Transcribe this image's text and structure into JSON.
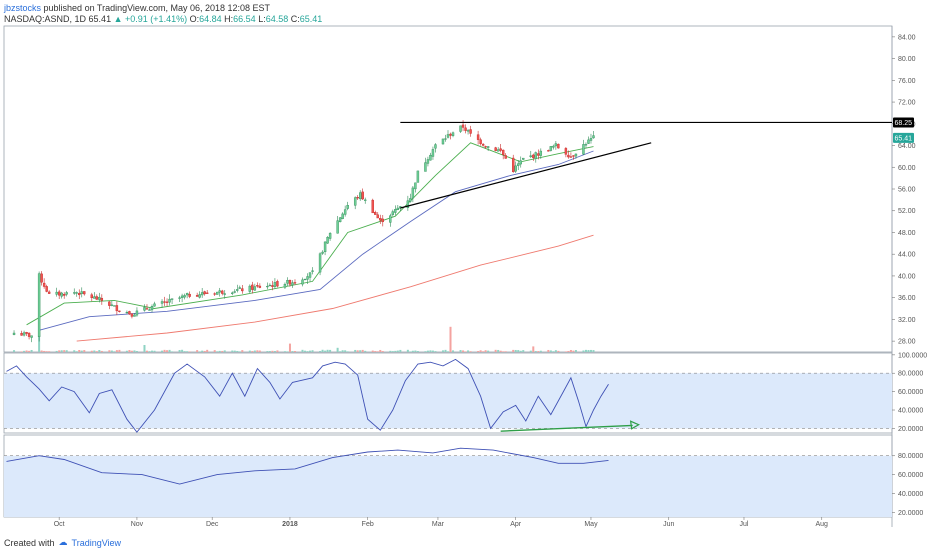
{
  "header": {
    "username": "jbzstocks",
    "published_text": "published on TradingView.com, May 06, 2018 12:08 EST",
    "symbol": "NASDAQ:ASND, 1D",
    "last": "65.41",
    "change": "+0.91 (+1.41%)",
    "open_label": "O:",
    "open": "64.84",
    "high_label": "H:",
    "high": "66.54",
    "low_label": "L:",
    "low": "64.58",
    "close_label": "C:",
    "close": "65.41"
  },
  "footer": {
    "created_with": "Created with",
    "brand": "TradingView"
  },
  "colors": {
    "up": "#26a69a",
    "down": "#ef5350",
    "up_fill": "#2e8b57",
    "ma_fast": "#4caf50",
    "ma_mid": "#5c6bc0",
    "ma_slow": "#ef7a6f",
    "osc_line": "#3f51b5",
    "osc_fill": "#dce9fb",
    "trend": "#000000",
    "divergence": "#2e9e48"
  },
  "chart_data": [
    {
      "type": "candlestick",
      "symbol": "NASDAQ:ASND",
      "interval": "1D",
      "ylim": [
        26,
        86
      ],
      "y_ticks": [
        "84.00",
        "80.00",
        "76.00",
        "72.00",
        "68.00",
        "64.00",
        "60.00",
        "56.00",
        "52.00",
        "48.00",
        "44.00",
        "40.00",
        "36.00",
        "32.00",
        "28.00"
      ],
      "x_ticks": [
        "Oct",
        "Nov",
        "Dec",
        "2018",
        "Feb",
        "Mar",
        "Apr",
        "May",
        "Jun",
        "Jul",
        "Aug"
      ],
      "price_labels": [
        {
          "value": "68.25"
        },
        {
          "value": "65.41"
        }
      ],
      "anchors": [
        {
          "date": "2017-09-15",
          "price": 29.5
        },
        {
          "date": "2017-09-22",
          "price": 29.0
        },
        {
          "date": "2017-09-25",
          "price": 40.0
        },
        {
          "date": "2017-09-29",
          "price": 36.5
        },
        {
          "date": "2017-10-10",
          "price": 37.0
        },
        {
          "date": "2017-10-20",
          "price": 35.5
        },
        {
          "date": "2017-10-26",
          "price": 34.0
        },
        {
          "date": "2017-11-01",
          "price": 33.0
        },
        {
          "date": "2017-11-10",
          "price": 34.5
        },
        {
          "date": "2017-11-24",
          "price": 36.5
        },
        {
          "date": "2017-12-15",
          "price": 37.5
        },
        {
          "date": "2017-12-29",
          "price": 38.5
        },
        {
          "date": "2018-01-05",
          "price": 39.0
        },
        {
          "date": "2018-01-12",
          "price": 40.5
        },
        {
          "date": "2018-01-19",
          "price": 48.0
        },
        {
          "date": "2018-01-26",
          "price": 53.0
        },
        {
          "date": "2018-01-31",
          "price": 55.0
        },
        {
          "date": "2018-02-05",
          "price": 52.0
        },
        {
          "date": "2018-02-08",
          "price": 50.0
        },
        {
          "date": "2018-02-14",
          "price": 52.0
        },
        {
          "date": "2018-02-20",
          "price": 54.5
        },
        {
          "date": "2018-02-23",
          "price": 59.0
        },
        {
          "date": "2018-03-02",
          "price": 64.0
        },
        {
          "date": "2018-03-09",
          "price": 66.5
        },
        {
          "date": "2018-03-13",
          "price": 67.5
        },
        {
          "date": "2018-03-16",
          "price": 66.0
        },
        {
          "date": "2018-03-22",
          "price": 64.0
        },
        {
          "date": "2018-03-28",
          "price": 63.0
        },
        {
          "date": "2018-04-02",
          "price": 59.5
        },
        {
          "date": "2018-04-06",
          "price": 61.5
        },
        {
          "date": "2018-04-12",
          "price": 62.5
        },
        {
          "date": "2018-04-19",
          "price": 64.0
        },
        {
          "date": "2018-04-25",
          "price": 62.0
        },
        {
          "date": "2018-05-01",
          "price": 64.5
        },
        {
          "date": "2018-05-04",
          "price": 65.41
        }
      ],
      "moving_averages": [
        {
          "anchors": [
            {
              "date": "2017-09-20",
              "price": 31.0
            },
            {
              "date": "2017-10-05",
              "price": 35.0
            },
            {
              "date": "2017-10-25",
              "price": 35.5
            },
            {
              "date": "2017-11-10",
              "price": 34.0
            },
            {
              "date": "2017-12-15",
              "price": 36.5
            },
            {
              "date": "2018-01-12",
              "price": 39.0
            },
            {
              "date": "2018-01-26",
              "price": 48.0
            },
            {
              "date": "2018-02-14",
              "price": 51.0
            },
            {
              "date": "2018-03-02",
              "price": 58.5
            },
            {
              "date": "2018-03-16",
              "price": 64.5
            },
            {
              "date": "2018-04-05",
              "price": 61.0
            },
            {
              "date": "2018-04-20",
              "price": 62.5
            },
            {
              "date": "2018-05-04",
              "price": 63.8
            }
          ]
        },
        {
          "anchors": [
            {
              "date": "2017-09-25",
              "price": 30.0
            },
            {
              "date": "2017-10-15",
              "price": 32.5
            },
            {
              "date": "2017-11-15",
              "price": 33.5
            },
            {
              "date": "2017-12-20",
              "price": 35.5
            },
            {
              "date": "2018-01-15",
              "price": 37.5
            },
            {
              "date": "2018-02-01",
              "price": 44.0
            },
            {
              "date": "2018-02-20",
              "price": 50.0
            },
            {
              "date": "2018-03-10",
              "price": 55.5
            },
            {
              "date": "2018-04-01",
              "price": 58.5
            },
            {
              "date": "2018-04-20",
              "price": 60.5
            },
            {
              "date": "2018-05-04",
              "price": 63.0
            }
          ]
        },
        {
          "anchors": [
            {
              "date": "2017-10-10",
              "price": 28.0
            },
            {
              "date": "2017-11-15",
              "price": 29.5
            },
            {
              "date": "2017-12-20",
              "price": 31.5
            },
            {
              "date": "2018-01-20",
              "price": 34.0
            },
            {
              "date": "2018-02-20",
              "price": 38.0
            },
            {
              "date": "2018-03-20",
              "price": 42.0
            },
            {
              "date": "2018-04-20",
              "price": 45.5
            },
            {
              "date": "2018-05-04",
              "price": 47.5
            }
          ]
        }
      ],
      "trendlines": [
        {
          "from": {
            "date": "2018-02-16",
            "price": 68.25
          },
          "to": {
            "date": "2018-08-31",
            "price": 68.25
          }
        },
        {
          "from": {
            "date": "2018-02-16",
            "price": 52.5
          },
          "to": {
            "date": "2018-05-27",
            "price": 64.5
          }
        }
      ],
      "volume": {
        "spikes": [
          {
            "date": "2017-09-25",
            "volume": 12
          },
          {
            "date": "2017-11-06",
            "volume": 5
          },
          {
            "date": "2018-01-03",
            "volume": 6
          },
          {
            "date": "2018-01-22",
            "volume": 3
          },
          {
            "date": "2018-03-08",
            "volume": 18
          },
          {
            "date": "2018-04-10",
            "volume": 4
          }
        ]
      }
    },
    {
      "type": "line",
      "name_hidden": true,
      "ylim": [
        15,
        102
      ],
      "y_ticks": [
        "100.0000",
        "80.0000",
        "60.0000",
        "40.0000",
        "20.0000"
      ],
      "levels": [
        80,
        20
      ],
      "anchors": [
        {
          "date": "2017-09-12",
          "value": 82
        },
        {
          "date": "2017-09-16",
          "value": 88
        },
        {
          "date": "2017-09-20",
          "value": 76
        },
        {
          "date": "2017-09-25",
          "value": 63
        },
        {
          "date": "2017-09-29",
          "value": 50
        },
        {
          "date": "2017-10-04",
          "value": 65
        },
        {
          "date": "2017-10-09",
          "value": 60
        },
        {
          "date": "2017-10-15",
          "value": 37
        },
        {
          "date": "2017-10-19",
          "value": 58
        },
        {
          "date": "2017-10-24",
          "value": 62
        },
        {
          "date": "2017-10-30",
          "value": 30
        },
        {
          "date": "2017-11-03",
          "value": 16
        },
        {
          "date": "2017-11-10",
          "value": 40
        },
        {
          "date": "2017-11-18",
          "value": 80
        },
        {
          "date": "2017-11-23",
          "value": 90
        },
        {
          "date": "2017-11-30",
          "value": 76
        },
        {
          "date": "2017-12-06",
          "value": 55
        },
        {
          "date": "2017-12-11",
          "value": 80
        },
        {
          "date": "2017-12-16",
          "value": 55
        },
        {
          "date": "2017-12-21",
          "value": 85
        },
        {
          "date": "2017-12-26",
          "value": 70
        },
        {
          "date": "2017-12-30",
          "value": 52
        },
        {
          "date": "2018-01-04",
          "value": 70
        },
        {
          "date": "2018-01-12",
          "value": 75
        },
        {
          "date": "2018-01-16",
          "value": 88
        },
        {
          "date": "2018-01-21",
          "value": 92
        },
        {
          "date": "2018-01-25",
          "value": 90
        },
        {
          "date": "2018-01-30",
          "value": 78
        },
        {
          "date": "2018-02-03",
          "value": 30
        },
        {
          "date": "2018-02-08",
          "value": 18
        },
        {
          "date": "2018-02-13",
          "value": 40
        },
        {
          "date": "2018-02-18",
          "value": 72
        },
        {
          "date": "2018-02-23",
          "value": 90
        },
        {
          "date": "2018-02-28",
          "value": 92
        },
        {
          "date": "2018-03-05",
          "value": 88
        },
        {
          "date": "2018-03-10",
          "value": 95
        },
        {
          "date": "2018-03-15",
          "value": 85
        },
        {
          "date": "2018-03-20",
          "value": 55
        },
        {
          "date": "2018-03-24",
          "value": 20
        },
        {
          "date": "2018-03-29",
          "value": 38
        },
        {
          "date": "2018-04-03",
          "value": 45
        },
        {
          "date": "2018-04-07",
          "value": 28
        },
        {
          "date": "2018-04-12",
          "value": 55
        },
        {
          "date": "2018-04-17",
          "value": 35
        },
        {
          "date": "2018-04-22",
          "value": 60
        },
        {
          "date": "2018-04-25",
          "value": 75
        },
        {
          "date": "2018-04-28",
          "value": 50
        },
        {
          "date": "2018-05-01",
          "value": 22
        },
        {
          "date": "2018-05-04",
          "value": 40
        },
        {
          "date": "2018-05-07",
          "value": 55
        },
        {
          "date": "2018-05-10",
          "value": 68
        }
      ],
      "trendline": {
        "from": {
          "date": "2018-03-28",
          "value": 17
        },
        "to": {
          "date": "2018-05-22",
          "value": 24
        }
      }
    },
    {
      "type": "line",
      "ylim": [
        15,
        102
      ],
      "y_ticks": [
        "80.0000",
        "60.0000",
        "40.0000",
        "20.0000"
      ],
      "levels": [
        80
      ],
      "anchors": [
        {
          "date": "2017-09-12",
          "value": 74
        },
        {
          "date": "2017-09-25",
          "value": 80
        },
        {
          "date": "2017-10-05",
          "value": 76
        },
        {
          "date": "2017-10-20",
          "value": 62
        },
        {
          "date": "2017-11-05",
          "value": 60
        },
        {
          "date": "2017-11-20",
          "value": 50
        },
        {
          "date": "2017-12-05",
          "value": 60
        },
        {
          "date": "2017-12-20",
          "value": 64
        },
        {
          "date": "2018-01-05",
          "value": 66
        },
        {
          "date": "2018-01-20",
          "value": 78
        },
        {
          "date": "2018-02-03",
          "value": 84
        },
        {
          "date": "2018-02-15",
          "value": 86
        },
        {
          "date": "2018-03-01",
          "value": 83
        },
        {
          "date": "2018-03-12",
          "value": 88
        },
        {
          "date": "2018-03-25",
          "value": 86
        },
        {
          "date": "2018-04-10",
          "value": 78
        },
        {
          "date": "2018-04-20",
          "value": 72
        },
        {
          "date": "2018-04-30",
          "value": 72
        },
        {
          "date": "2018-05-10",
          "value": 75
        }
      ]
    }
  ]
}
